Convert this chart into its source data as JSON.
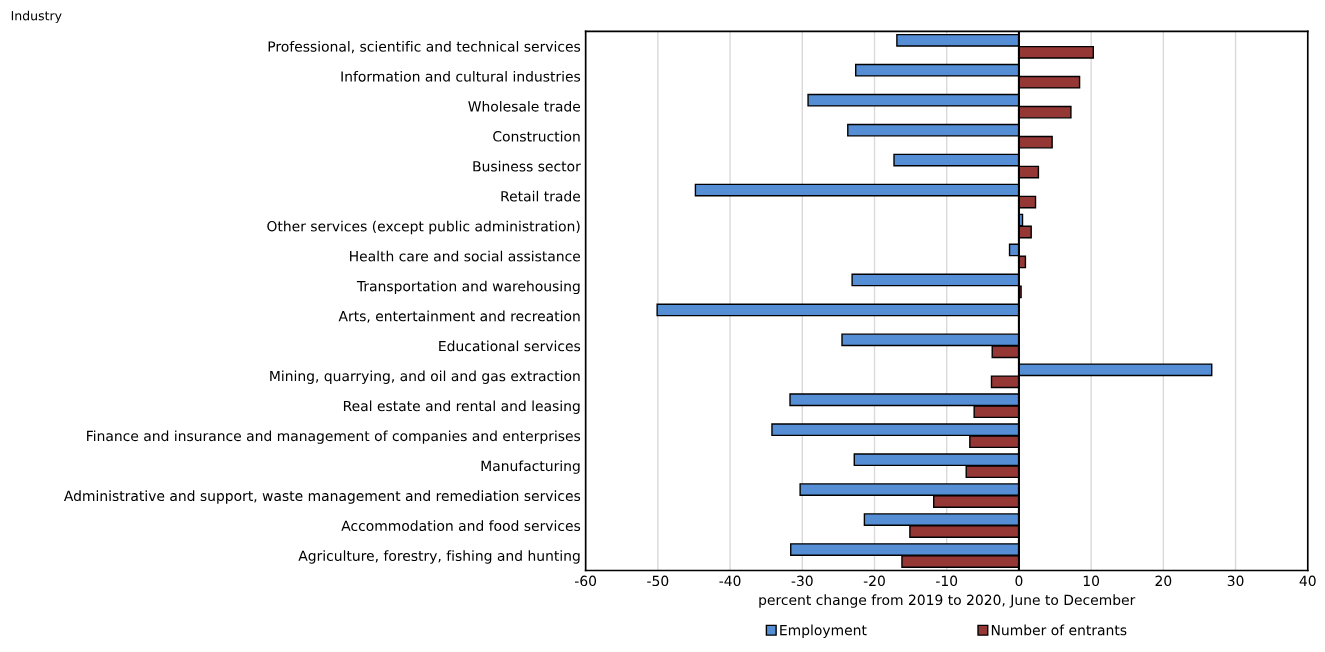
{
  "chart_data": {
    "type": "bar",
    "orientation": "horizontal",
    "ylabel": "Industry",
    "xlabel": "percent change from 2019 to 2020, June to December",
    "categories": [
      "Professional, scientific and technical services",
      "Information and cultural industries",
      "Wholesale trade",
      "Construction",
      "Business sector",
      "Retail trade",
      "Other services (except public administration)",
      "Health care and social assistance",
      "Transportation and warehousing",
      "Arts, entertainment and recreation",
      "Educational services",
      "Mining, quarrying, and oil and gas extraction",
      "Real estate and rental and leasing",
      "Finance and insurance and management of companies and enterprises",
      "Manufacturing",
      "Administrative and support, waste management and remediation services",
      "Accommodation and food services",
      "Agriculture, forestry, fishing and hunting"
    ],
    "series": [
      {
        "name": "Employment",
        "color": "#558ed5",
        "values": [
          -16.9,
          -22.6,
          -29.2,
          -23.7,
          -17.3,
          -44.8,
          0.5,
          -1.3,
          -23.1,
          -50.1,
          -24.5,
          26.7,
          -31.7,
          -34.2,
          -22.8,
          -30.3,
          -21.4,
          -31.6
        ]
      },
      {
        "name": "Number of entrants",
        "color": "#953735",
        "values": [
          10.3,
          8.4,
          7.2,
          4.6,
          2.7,
          2.3,
          1.7,
          0.9,
          0.3,
          null,
          -3.7,
          -3.8,
          -6.2,
          -6.8,
          -7.3,
          -11.8,
          -15.1,
          -16.2
        ]
      }
    ],
    "xlim": [
      -60,
      40
    ],
    "xticks": [
      -60,
      -50,
      -40,
      -30,
      -20,
      -10,
      0,
      10,
      20,
      30,
      40
    ],
    "grid": "x",
    "legend": "bottom"
  }
}
